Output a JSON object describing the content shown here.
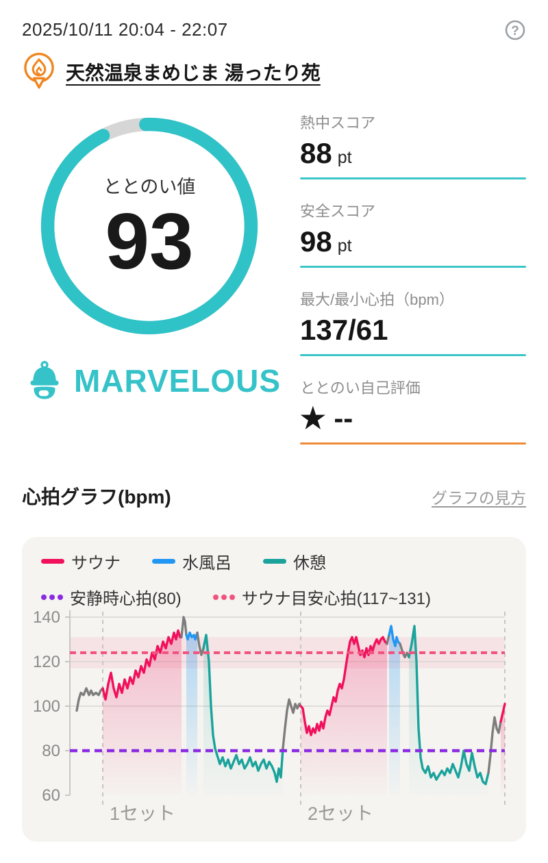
{
  "header": {
    "datetime": "2025/10/11 20:04 - 22:07"
  },
  "venue": {
    "name": "天然温泉まめじま 湯ったり苑"
  },
  "gauge": {
    "label": "ととのい値",
    "value": 93,
    "max": 100,
    "color": "#2fc2c7",
    "track_color": "#d6d6d6",
    "rating_label": "MARVELOUS",
    "rating_color": "#35c2c9"
  },
  "stats": [
    {
      "label": "熱中スコア",
      "value": "88",
      "unit": "pt",
      "underline_color": "#3cc5c9"
    },
    {
      "label": "安全スコア",
      "value": "98",
      "unit": "pt",
      "underline_color": "#3cc5c9"
    },
    {
      "label": "最大/最小心拍（bpm）",
      "value": "137/61",
      "unit": "",
      "underline_color": "#3cc5c9"
    },
    {
      "label": "ととのい自己評価",
      "value": "★ --",
      "unit": "",
      "underline_color": "#ef8a36"
    }
  ],
  "section": {
    "title": "心拍グラフ(bpm)",
    "link": "グラフの見方"
  },
  "chart_data": {
    "type": "line",
    "title": "心拍グラフ(bpm)",
    "ylabel": "bpm",
    "ylim": [
      60,
      140
    ],
    "yticks": [
      140,
      120,
      100,
      80,
      60
    ],
    "gridlines": [
      140,
      120,
      100
    ],
    "x_domain": [
      0,
      635
    ],
    "legend": [
      {
        "label": "サウナ",
        "color": "#f1105c",
        "style": "solid"
      },
      {
        "label": "水風呂",
        "color": "#2196f3",
        "style": "solid"
      },
      {
        "label": "休憩",
        "color": "#1aa29b",
        "style": "solid"
      },
      {
        "label": "安静時心拍(80)",
        "color": "#8a2be2",
        "style": "dotted"
      },
      {
        "label": "サウナ目安心拍(117~131)",
        "color": "#f2537e",
        "style": "dotted"
      }
    ],
    "reference_lines": [
      {
        "label": "サウナ目安心拍(117~131)",
        "value": 124,
        "range": [
          117,
          131
        ],
        "color": "#f2537e",
        "band_color": "rgba(242,83,126,0.10)"
      },
      {
        "label": "安静時心拍(80)",
        "value": 80,
        "color": "#8a2be2"
      }
    ],
    "set_markers": [
      {
        "label": "1セット",
        "x": 48
      },
      {
        "label": "2セット",
        "x": 337
      },
      {
        "label": "",
        "x": 635
      }
    ],
    "phases": {
      "pre": {
        "color": "#7d7d7d",
        "fill_alpha": 0
      },
      "sauna": {
        "color": "#f1105c",
        "fill_alpha": 0.26
      },
      "bath": {
        "color": "#2196f3",
        "fill_alpha": 0.33
      },
      "rest": {
        "color": "#1aa29b",
        "fill_alpha": 0.2
      }
    },
    "segments": [
      {
        "phase": "pre",
        "points": [
          [
            10,
            98
          ],
          [
            13,
            103
          ],
          [
            16,
            106
          ],
          [
            20,
            105
          ],
          [
            24,
            108
          ],
          [
            28,
            105
          ],
          [
            31,
            107
          ],
          [
            34,
            105
          ],
          [
            38,
            106
          ],
          [
            42,
            105
          ],
          [
            45,
            107
          ],
          [
            48,
            108
          ]
        ]
      },
      {
        "phase": "sauna",
        "points": [
          [
            48,
            108
          ],
          [
            52,
            103
          ],
          [
            56,
            110
          ],
          [
            60,
            115
          ],
          [
            64,
            108
          ],
          [
            68,
            104
          ],
          [
            72,
            110
          ],
          [
            76,
            106
          ],
          [
            80,
            112
          ],
          [
            84,
            108
          ],
          [
            88,
            113
          ],
          [
            92,
            110
          ],
          [
            96,
            116
          ],
          [
            100,
            113
          ],
          [
            104,
            118
          ],
          [
            108,
            115
          ],
          [
            112,
            121
          ],
          [
            116,
            118
          ],
          [
            120,
            124
          ],
          [
            124,
            121
          ],
          [
            128,
            127
          ],
          [
            132,
            124
          ],
          [
            136,
            129
          ],
          [
            140,
            126
          ],
          [
            144,
            131
          ],
          [
            148,
            128
          ],
          [
            152,
            133
          ],
          [
            155,
            130
          ],
          [
            158,
            134
          ],
          [
            161,
            131
          ],
          [
            163,
            131
          ]
        ]
      },
      {
        "phase": "pre",
        "points": [
          [
            163,
            131
          ],
          [
            166,
            140
          ],
          [
            168,
            138
          ],
          [
            170,
            132
          ]
        ]
      },
      {
        "phase": "bath",
        "points": [
          [
            170,
            132
          ],
          [
            172,
            130
          ],
          [
            175,
            133
          ],
          [
            178,
            131
          ],
          [
            181,
            132
          ],
          [
            183,
            130
          ],
          [
            186,
            133
          ]
        ]
      },
      {
        "phase": "pre",
        "points": [
          [
            186,
            133
          ],
          [
            189,
            127
          ],
          [
            192,
            123
          ],
          [
            195,
            126
          ]
        ]
      },
      {
        "phase": "rest",
        "points": [
          [
            195,
            126
          ],
          [
            199,
            132
          ],
          [
            203,
            120
          ],
          [
            206,
            100
          ],
          [
            209,
            87
          ],
          [
            212,
            81
          ],
          [
            215,
            78
          ],
          [
            219,
            74
          ],
          [
            223,
            77
          ],
          [
            227,
            73
          ],
          [
            231,
            76
          ],
          [
            235,
            72
          ],
          [
            239,
            75
          ],
          [
            243,
            78
          ],
          [
            247,
            74
          ],
          [
            251,
            76
          ],
          [
            255,
            72
          ],
          [
            259,
            74
          ],
          [
            263,
            77
          ],
          [
            267,
            73
          ],
          [
            271,
            75
          ],
          [
            275,
            71
          ],
          [
            279,
            74
          ],
          [
            283,
            76
          ],
          [
            287,
            72
          ],
          [
            291,
            75
          ],
          [
            295,
            73
          ],
          [
            299,
            70
          ],
          [
            302,
            66
          ],
          [
            305,
            72
          ],
          [
            308,
            68
          ],
          [
            311,
            81
          ]
        ]
      },
      {
        "phase": "pre",
        "points": [
          [
            311,
            81
          ],
          [
            314,
            90
          ],
          [
            317,
            98
          ],
          [
            320,
            103
          ],
          [
            323,
            100
          ],
          [
            326,
            97
          ],
          [
            329,
            101
          ],
          [
            332,
            99
          ],
          [
            335,
            101
          ],
          [
            337,
            100
          ]
        ]
      },
      {
        "phase": "sauna",
        "points": [
          [
            337,
            100
          ],
          [
            340,
            99
          ],
          [
            343,
            93
          ],
          [
            346,
            88
          ],
          [
            349,
            91
          ],
          [
            352,
            87
          ],
          [
            355,
            90
          ],
          [
            358,
            88
          ],
          [
            361,
            92
          ],
          [
            364,
            89
          ],
          [
            367,
            93
          ],
          [
            370,
            90
          ],
          [
            373,
            95
          ],
          [
            376,
            98
          ],
          [
            379,
            96
          ],
          [
            382,
            100
          ],
          [
            385,
            104
          ],
          [
            388,
            102
          ],
          [
            391,
            107
          ],
          [
            394,
            110
          ],
          [
            397,
            108
          ],
          [
            400,
            112
          ],
          [
            403,
            118
          ],
          [
            406,
            124
          ],
          [
            409,
            129
          ],
          [
            412,
            131
          ],
          [
            415,
            128
          ],
          [
            418,
            131
          ],
          [
            421,
            127
          ],
          [
            424,
            123
          ],
          [
            427,
            125
          ],
          [
            430,
            122
          ],
          [
            433,
            126
          ],
          [
            436,
            123
          ],
          [
            439,
            127
          ],
          [
            442,
            125
          ],
          [
            445,
            128
          ],
          [
            448,
            130
          ],
          [
            451,
            128
          ],
          [
            454,
            130
          ],
          [
            457,
            131
          ],
          [
            460,
            129
          ],
          [
            463,
            128
          ]
        ]
      },
      {
        "phase": "pre",
        "points": [
          [
            463,
            128
          ],
          [
            466,
            132
          ]
        ]
      },
      {
        "phase": "bath",
        "points": [
          [
            466,
            132
          ],
          [
            469,
            136
          ],
          [
            472,
            130
          ],
          [
            475,
            127
          ],
          [
            477,
            131
          ],
          [
            479,
            129
          ],
          [
            482,
            128
          ]
        ]
      },
      {
        "phase": "pre",
        "points": [
          [
            482,
            128
          ],
          [
            486,
            124
          ],
          [
            489,
            122
          ],
          [
            492,
            124
          ],
          [
            495,
            122
          ]
        ]
      },
      {
        "phase": "rest",
        "points": [
          [
            495,
            122
          ],
          [
            499,
            128
          ],
          [
            503,
            136
          ],
          [
            506,
            120
          ],
          [
            509,
            90
          ],
          [
            512,
            77
          ],
          [
            515,
            72
          ],
          [
            519,
            70
          ],
          [
            523,
            73
          ],
          [
            527,
            68
          ],
          [
            531,
            70
          ],
          [
            535,
            67
          ],
          [
            539,
            69
          ],
          [
            543,
            71
          ],
          [
            547,
            69
          ],
          [
            551,
            72
          ],
          [
            555,
            70
          ],
          [
            559,
            74
          ],
          [
            563,
            71
          ],
          [
            567,
            68
          ],
          [
            571,
            73
          ],
          [
            575,
            80
          ],
          [
            579,
            74
          ],
          [
            583,
            71
          ],
          [
            587,
            79
          ],
          [
            591,
            73
          ],
          [
            595,
            68
          ],
          [
            599,
            70
          ],
          [
            603,
            66
          ],
          [
            607,
            65
          ],
          [
            611,
            70
          ]
        ]
      },
      {
        "phase": "pre",
        "points": [
          [
            611,
            70
          ],
          [
            614,
            78
          ],
          [
            617,
            88
          ],
          [
            620,
            95
          ],
          [
            623,
            90
          ],
          [
            626,
            88
          ],
          [
            629,
            93
          ]
        ]
      },
      {
        "phase": "sauna",
        "points": [
          [
            629,
            93
          ],
          [
            632,
            97
          ],
          [
            635,
            101
          ]
        ]
      }
    ]
  }
}
